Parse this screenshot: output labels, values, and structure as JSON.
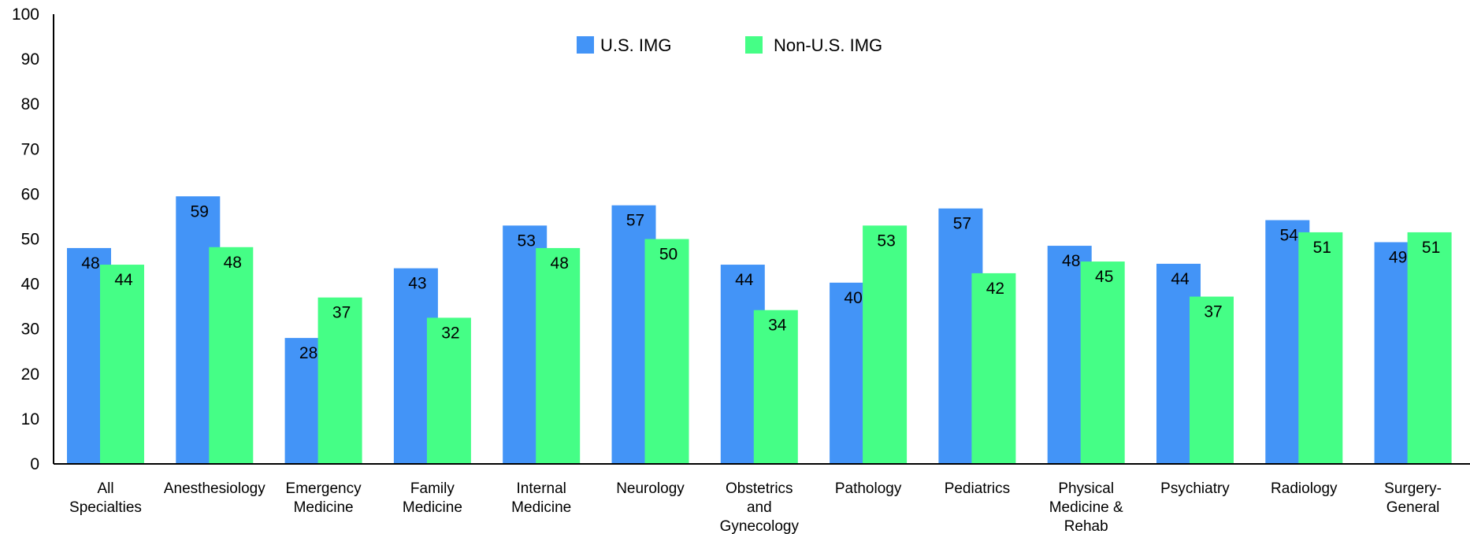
{
  "chart_data": {
    "type": "bar",
    "categories": [
      [
        "All",
        "Specialties"
      ],
      [
        "Anesthesiology"
      ],
      [
        "Emergency",
        "Medicine"
      ],
      [
        "Family",
        "Medicine"
      ],
      [
        "Internal",
        "Medicine"
      ],
      [
        "Neurology"
      ],
      [
        "Obstetrics",
        "and",
        "Gynecology"
      ],
      [
        "Pathology"
      ],
      [
        "Pediatrics"
      ],
      [
        "Physical",
        "Medicine &",
        "Rehab"
      ],
      [
        "Psychiatry"
      ],
      [
        "Radiology"
      ],
      [
        "Surgery-",
        "General"
      ]
    ],
    "series": [
      {
        "name": "U.S. IMG",
        "color": "#4394F7",
        "values": [
          48,
          59.5,
          28,
          43.5,
          53,
          57.5,
          44.3,
          40.3,
          56.8,
          48.5,
          44.5,
          54.2,
          49.3
        ],
        "labels": [
          "48",
          "59",
          "28",
          "43",
          "53",
          "57",
          "44",
          "40",
          "57",
          "48",
          "44",
          "54",
          "49"
        ]
      },
      {
        "name": "Non-U.S. IMG",
        "color": "#45FE86",
        "values": [
          44.3,
          48.2,
          37,
          32.5,
          48,
          50,
          34.2,
          53,
          42.4,
          45,
          37.2,
          51.5,
          51.5
        ],
        "labels": [
          "44",
          "48",
          "37",
          "32",
          "48",
          "50",
          "34",
          "53",
          "42",
          "45",
          "37",
          "51",
          "51"
        ]
      }
    ],
    "ylim": [
      0,
      100
    ],
    "yticks": [
      0,
      10,
      20,
      30,
      40,
      50,
      60,
      70,
      80,
      90,
      100
    ],
    "title": "",
    "xlabel": "",
    "ylabel": "",
    "grid": false,
    "legend": "top-center"
  }
}
